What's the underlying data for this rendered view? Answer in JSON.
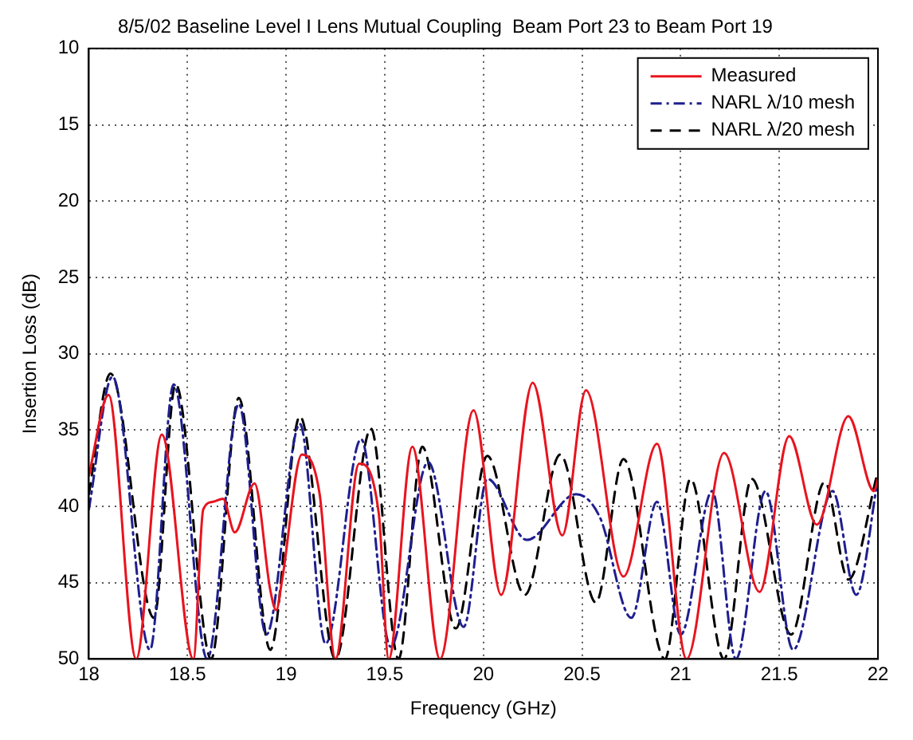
{
  "chart_data": {
    "type": "line",
    "title": "8/5/02 Baseline Level I Lens Mutual Coupling  Beam Port 23 to Beam Port 19",
    "xlabel": "Frequency (GHz)",
    "ylabel": "Insertion Loss (dB)",
    "xlim": [
      18,
      22
    ],
    "xticks": [
      18,
      18.5,
      19,
      19.5,
      20,
      20.5,
      21,
      21.5,
      22
    ],
    "ylim": [
      50,
      10
    ],
    "yticks": [
      10,
      15,
      20,
      25,
      30,
      35,
      40,
      45,
      50
    ],
    "grid": true,
    "legend": "top right",
    "marker": "none",
    "series": [
      {
        "name": "Measured",
        "color": "#e8141e",
        "line_style": "solid",
        "x": [
          18.0,
          18.1,
          18.24,
          18.37,
          18.53,
          18.58,
          18.63,
          18.68,
          18.74,
          18.84,
          18.92,
          18.95,
          18.98,
          19.08,
          19.17,
          19.25,
          19.37,
          19.47,
          19.52,
          19.64,
          19.78,
          19.95,
          20.09,
          20.25,
          20.4,
          20.52,
          20.71,
          20.88,
          21.03,
          21.22,
          21.4,
          21.55,
          21.69,
          21.85,
          21.98,
          22.0
        ],
        "values": [
          38,
          32.7,
          50,
          35.3,
          50,
          40.2,
          39.7,
          39.5,
          41.7,
          38.5,
          45.5,
          46.8,
          44.8,
          36.6,
          39.2,
          50,
          37.2,
          40.5,
          50,
          36.1,
          50,
          33.7,
          45.8,
          31.9,
          41.9,
          32.4,
          44.6,
          35.9,
          50,
          36.5,
          45.6,
          35.4,
          41.2,
          34.1,
          39,
          38.2
        ]
      },
      {
        "name": "NARL λ/10 mesh",
        "color": "#1f1f8f",
        "line_style": "dashdot",
        "x": [
          18.0,
          18.12,
          18.31,
          18.43,
          18.6,
          18.76,
          18.9,
          19.07,
          19.2,
          19.38,
          19.53,
          19.72,
          19.9,
          20.02,
          20.22,
          20.47,
          20.59,
          20.75,
          20.88,
          21.0,
          21.16,
          21.28,
          21.43,
          21.57,
          21.77,
          21.89,
          22.0
        ],
        "values": [
          40.2,
          31.5,
          49.4,
          32,
          50,
          33.3,
          48.4,
          34.6,
          49,
          35.6,
          49.2,
          37.1,
          47.9,
          38.2,
          42.2,
          39.2,
          40.7,
          47.3,
          39.7,
          48.4,
          39,
          50,
          39,
          49.4,
          39,
          45.8,
          38.2
        ]
      },
      {
        "name": "NARL λ/20 mesh",
        "color": "#000000",
        "line_style": "dashed",
        "x": [
          18.0,
          18.11,
          18.33,
          18.44,
          18.62,
          18.76,
          18.92,
          19.07,
          19.25,
          19.43,
          19.57,
          19.69,
          19.86,
          20.02,
          20.21,
          20.39,
          20.57,
          20.71,
          20.92,
          21.05,
          21.22,
          21.36,
          21.56,
          21.73,
          21.85,
          22.0
        ],
        "values": [
          39.2,
          31.3,
          47.3,
          32,
          50,
          32.9,
          49.4,
          34.1,
          50,
          34.9,
          50,
          36.1,
          48,
          36.7,
          45.8,
          36.6,
          46.3,
          36.9,
          50,
          38.2,
          50,
          38.2,
          48.4,
          38.4,
          44.8,
          37.7
        ]
      }
    ]
  }
}
